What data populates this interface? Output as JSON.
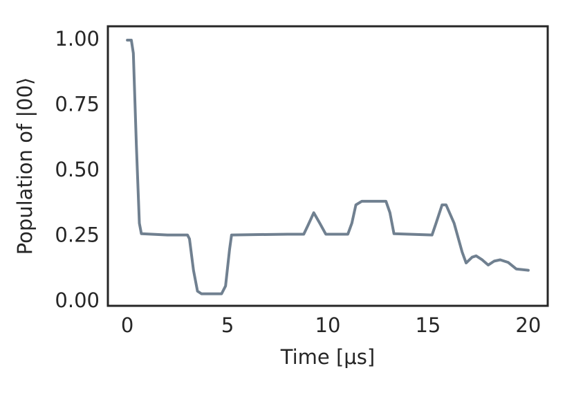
{
  "chart_data": {
    "type": "line",
    "xlabel": "Time [μs]",
    "ylabel": "Population of |00⟩",
    "x": [
      0,
      0.2,
      0.3,
      0.45,
      0.6,
      0.7,
      2,
      3,
      3.1,
      3.3,
      3.5,
      3.7,
      4.7,
      4.9,
      5.1,
      5.2,
      8,
      8.8,
      9.0,
      9.3,
      9.6,
      9.9,
      11,
      11.2,
      11.4,
      11.7,
      12.9,
      13.1,
      13.3,
      15.2,
      15.4,
      15.7,
      15.9,
      16.3,
      16.7,
      16.9,
      17.2,
      17.4,
      17.7,
      18,
      18.3,
      18.6,
      19,
      19.4,
      20
    ],
    "values": [
      1.0,
      1.0,
      0.95,
      0.6,
      0.3,
      0.26,
      0.255,
      0.255,
      0.24,
      0.12,
      0.04,
      0.03,
      0.03,
      0.06,
      0.2,
      0.255,
      0.258,
      0.258,
      0.29,
      0.34,
      0.3,
      0.258,
      0.258,
      0.3,
      0.37,
      0.384,
      0.384,
      0.34,
      0.26,
      0.255,
      0.3,
      0.37,
      0.37,
      0.3,
      0.19,
      0.148,
      0.17,
      0.175,
      0.16,
      0.14,
      0.155,
      0.16,
      0.15,
      0.125,
      0.12
    ],
    "color": "#708090",
    "xlim": [
      -0.97,
      20.97
    ],
    "ylim": [
      -0.016,
      1.053
    ],
    "xticks": [
      0,
      5,
      10,
      15,
      20
    ],
    "yticks": [
      {
        "value": 0,
        "label": "0.00"
      },
      {
        "value": 0.25,
        "label": "0.25"
      },
      {
        "value": 0.5,
        "label": "0.50"
      },
      {
        "value": 0.75,
        "label": "0.75"
      },
      {
        "value": 1,
        "label": "1.00"
      }
    ],
    "grid": false
  }
}
